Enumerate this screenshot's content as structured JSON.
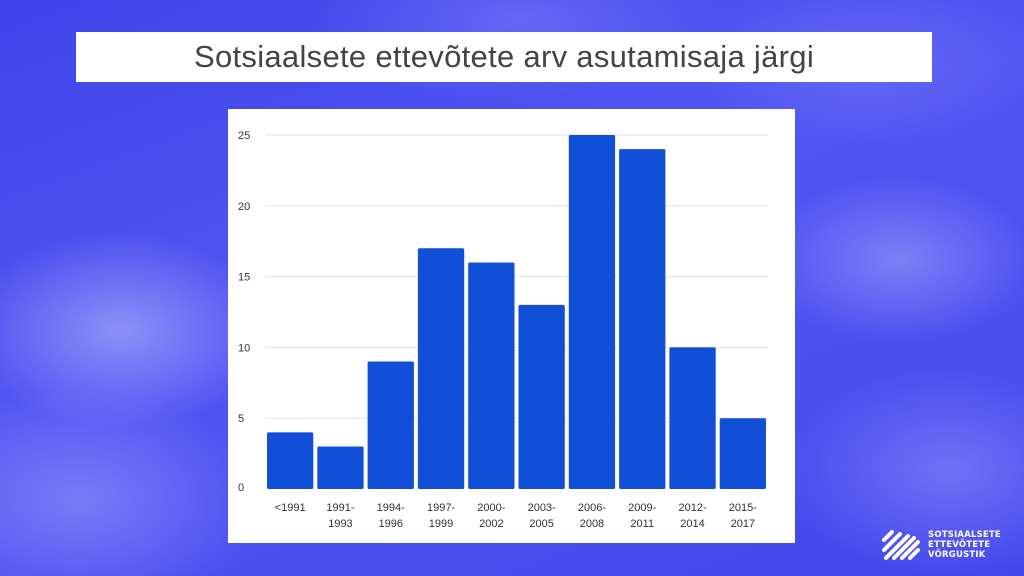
{
  "title": "Sotsiaalsete ettevõtete arv asutamisaja järgi",
  "logo": {
    "lines": [
      "SOTSIAALSETE",
      "ETTEVÕTETE",
      "VÕRGUSTIK"
    ]
  },
  "colors": {
    "bar": "#1150d6",
    "grid": "#e2e2e2",
    "axis_text": "#333333"
  },
  "chart_data": {
    "type": "bar",
    "title": "",
    "xlabel": "",
    "ylabel": "",
    "ylim": [
      0,
      25
    ],
    "yticks": [
      0,
      5,
      10,
      15,
      20,
      25
    ],
    "grid": true,
    "categories": [
      [
        "<1991"
      ],
      [
        "1991-",
        "1993"
      ],
      [
        "1994-",
        "1996"
      ],
      [
        "1997-",
        "1999"
      ],
      [
        "2000-",
        "2002"
      ],
      [
        "2003-",
        "2005"
      ],
      [
        "2006-",
        "2008"
      ],
      [
        "2009-",
        "2011"
      ],
      [
        "2012-",
        "2014"
      ],
      [
        "2015-",
        "2017"
      ]
    ],
    "values": [
      4,
      3,
      9,
      17,
      16,
      13,
      25,
      24,
      10,
      5
    ]
  }
}
